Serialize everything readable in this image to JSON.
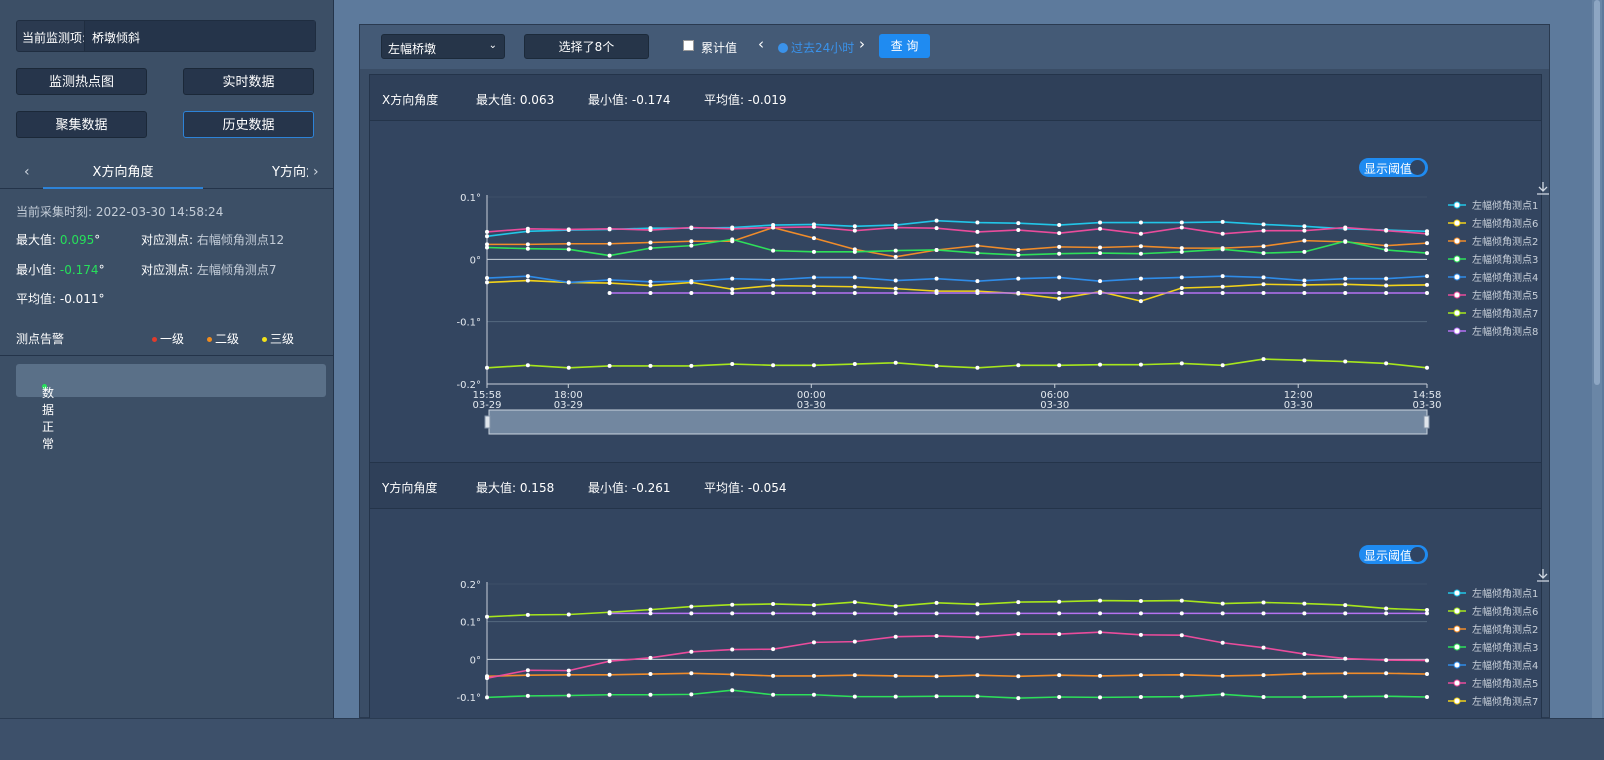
{
  "left": {
    "monitor_label": "当前监测项:",
    "monitor_value": "桥墩倾斜",
    "buttons": [
      "监测热点图",
      "实时数据",
      "聚集数据",
      "历史数据"
    ],
    "tab_x": "X方向角度",
    "tab_y": "Y方向角度",
    "collect_time_label": "当前采集时刻:",
    "collect_time": "2022-03-30 14:58:24",
    "max_label": "最大值:",
    "max_value": "0.095",
    "max_unit": "°",
    "max_point_label": "对应测点:",
    "max_point": "右幅倾角测点12",
    "min_label": "最小值:",
    "min_value": "-0.174",
    "min_unit": "°",
    "min_point_label": "对应测点:",
    "min_point": "左幅倾角测点7",
    "avg_text": "平均值: -0.011°",
    "alarm_title": "测点告警",
    "alarm_levels": [
      {
        "label": "一级",
        "color": "#e03b2c"
      },
      {
        "label": "二级",
        "color": "#f08c1e"
      },
      {
        "label": "三级",
        "color": "#f2e21a"
      }
    ],
    "status_text": "数据正常",
    "status_color": "#26e05a"
  },
  "toolbar": {
    "select_value": "左幅桥墩",
    "selected_text": "选择了8个",
    "accumulate_label": "累计值",
    "time_range": "过去24小时",
    "query_label": "查 询"
  },
  "chart_x_header": {
    "title": "X方向角度",
    "max": "最大值: 0.063",
    "min": "最小值: -0.174",
    "avg": "平均值: -0.019",
    "threshold_toggle": "显示阈值"
  },
  "chart_y_header": {
    "title": "Y方向角度",
    "max": "最大值: 0.158",
    "min": "最小值: -0.261",
    "avg": "平均值: -0.054",
    "threshold_toggle": "显示阈值"
  },
  "chart_data": [
    {
      "type": "line",
      "title": "",
      "ylim": [
        -0.2,
        0.1
      ],
      "yticks": [
        "0.1°",
        "0°",
        "-0.1°",
        "-0.2°"
      ],
      "xticks": [
        [
          "15:58",
          "03-29"
        ],
        [
          "18:00",
          "03-29"
        ],
        [
          "00:00",
          "03-30"
        ],
        [
          "06:00",
          "03-30"
        ],
        [
          "12:00",
          "03-30"
        ],
        [
          "14:58",
          "03-30"
        ]
      ],
      "n_points": 24,
      "series": [
        {
          "name": "左幅倾角测点1",
          "color": "#22c6e8",
          "start": 0,
          "values": [
            0.037,
            0.045,
            0.047,
            0.048,
            0.05,
            0.05,
            0.051,
            0.055,
            0.056,
            0.053,
            0.055,
            0.062,
            0.059,
            0.058,
            0.055,
            0.059,
            0.059,
            0.059,
            0.06,
            0.056,
            0.053,
            0.049,
            0.047,
            0.045
          ]
        },
        {
          "name": "左幅倾角测点6",
          "color": "#f2d21a",
          "start": 0,
          "values": [
            -0.037,
            -0.034,
            -0.037,
            -0.038,
            -0.042,
            -0.037,
            -0.048,
            -0.042,
            -0.043,
            -0.044,
            -0.047,
            -0.051,
            -0.051,
            -0.055,
            -0.063,
            -0.052,
            -0.067,
            -0.046,
            -0.044,
            -0.04,
            -0.041,
            -0.04,
            -0.042,
            -0.041
          ]
        },
        {
          "name": "左幅倾角测点2",
          "color": "#f08c2a",
          "start": 0,
          "values": [
            0.024,
            0.024,
            0.025,
            0.025,
            0.027,
            0.029,
            0.029,
            0.051,
            0.034,
            0.016,
            0.004,
            0.015,
            0.022,
            0.015,
            0.02,
            0.019,
            0.021,
            0.018,
            0.018,
            0.021,
            0.03,
            0.028,
            0.022,
            0.026
          ]
        },
        {
          "name": "左幅倾角测点3",
          "color": "#2ee05a",
          "start": 0,
          "values": [
            0.019,
            0.017,
            0.016,
            0.006,
            0.018,
            0.022,
            0.032,
            0.014,
            0.012,
            0.012,
            0.014,
            0.015,
            0.01,
            0.007,
            0.009,
            0.01,
            0.009,
            0.012,
            0.016,
            0.01,
            0.012,
            0.029,
            0.015,
            0.01
          ]
        },
        {
          "name": "左幅倾角测点4",
          "color": "#2f8ce8",
          "start": 0,
          "values": [
            -0.03,
            -0.027,
            -0.037,
            -0.033,
            -0.036,
            -0.035,
            -0.031,
            -0.033,
            -0.029,
            -0.029,
            -0.034,
            -0.031,
            -0.035,
            -0.031,
            -0.029,
            -0.035,
            -0.031,
            -0.029,
            -0.027,
            -0.029,
            -0.034,
            -0.031,
            -0.031,
            -0.027
          ]
        },
        {
          "name": "左幅倾角测点5",
          "color": "#ea4c9c",
          "start": 0,
          "values": [
            0.044,
            0.049,
            0.048,
            0.049,
            0.047,
            0.051,
            0.049,
            0.051,
            0.052,
            0.046,
            0.051,
            0.05,
            0.044,
            0.047,
            0.042,
            0.049,
            0.041,
            0.051,
            0.041,
            0.046,
            0.046,
            0.051,
            0.046,
            0.041
          ]
        },
        {
          "name": "左幅倾角测点7",
          "color": "#a7e61d",
          "start": 0,
          "values": [
            -0.174,
            -0.17,
            -0.174,
            -0.171,
            -0.171,
            -0.171,
            -0.168,
            -0.17,
            -0.17,
            -0.168,
            -0.166,
            -0.171,
            -0.174,
            -0.17,
            -0.17,
            -0.169,
            -0.169,
            -0.167,
            -0.17,
            -0.16,
            -0.162,
            -0.164,
            -0.167,
            -0.174
          ]
        },
        {
          "name": "左幅倾角测点8",
          "color": "#b672f2",
          "start": 3,
          "values": [
            -0.054,
            -0.054,
            -0.054,
            -0.054,
            -0.054,
            -0.054,
            -0.054,
            -0.054,
            -0.054,
            -0.054,
            -0.054,
            -0.054,
            -0.054,
            -0.054,
            -0.054,
            -0.054,
            -0.054,
            -0.054,
            -0.054,
            -0.054,
            -0.054
          ]
        }
      ]
    },
    {
      "type": "line",
      "title": "",
      "ylim": [
        -0.1,
        0.2
      ],
      "yticks": [
        "0.2°",
        "0.1°",
        "0°",
        "-0.1°"
      ],
      "n_points": 24,
      "series": [
        {
          "name": "左幅倾角测点1",
          "color": "#22c6e8",
          "start": 0,
          "values": []
        },
        {
          "name": "左幅倾角测点6",
          "color": "#a7e61d",
          "start": 0,
          "values": [
            0.113,
            0.118,
            0.119,
            0.125,
            0.132,
            0.14,
            0.145,
            0.147,
            0.144,
            0.152,
            0.141,
            0.15,
            0.146,
            0.152,
            0.153,
            0.156,
            0.155,
            0.156,
            0.148,
            0.151,
            0.148,
            0.144,
            0.135,
            0.131
          ]
        },
        {
          "name": "左幅倾角测点2",
          "color": "#f08c2a",
          "start": 0,
          "values": [
            -0.045,
            -0.042,
            -0.041,
            -0.041,
            -0.039,
            -0.037,
            -0.04,
            -0.044,
            -0.044,
            -0.042,
            -0.044,
            -0.045,
            -0.042,
            -0.045,
            -0.042,
            -0.044,
            -0.042,
            -0.041,
            -0.044,
            -0.042,
            -0.038,
            -0.037,
            -0.037,
            -0.039
          ]
        },
        {
          "name": "左幅倾角测点3",
          "color": "#2ee05a",
          "start": 0,
          "values": [
            -0.101,
            -0.097,
            -0.096,
            -0.094,
            -0.094,
            -0.093,
            -0.082,
            -0.094,
            -0.094,
            -0.099,
            -0.099,
            -0.098,
            -0.098,
            -0.103,
            -0.1,
            -0.101,
            -0.1,
            -0.099,
            -0.093,
            -0.1,
            -0.1,
            -0.099,
            -0.098,
            -0.1
          ]
        },
        {
          "name": "左幅倾角测点4",
          "color": "#2f8ce8",
          "start": 0,
          "values": []
        },
        {
          "name": "左幅倾角测点5",
          "color": "#ea4c9c",
          "start": 0,
          "values": [
            -0.05,
            -0.029,
            -0.03,
            -0.005,
            0.004,
            0.02,
            0.026,
            0.027,
            0.045,
            0.047,
            0.06,
            0.062,
            0.058,
            0.067,
            0.067,
            0.072,
            0.065,
            0.064,
            0.044,
            0.031,
            0.014,
            0.002,
            -0.002,
            -0.003
          ]
        },
        {
          "name": "左幅倾角测点7",
          "color": "#f2d21a",
          "start": 0,
          "values": []
        },
        {
          "name": "左幅倾角测点8",
          "color": "#b672f2",
          "start": 3,
          "values": [
            0.122,
            0.122,
            0.122,
            0.122,
            0.122,
            0.122,
            0.122,
            0.122,
            0.122,
            0.122,
            0.122,
            0.122,
            0.122,
            0.122,
            0.122,
            0.122,
            0.122,
            0.122,
            0.122,
            0.122,
            0.122
          ]
        }
      ]
    }
  ]
}
